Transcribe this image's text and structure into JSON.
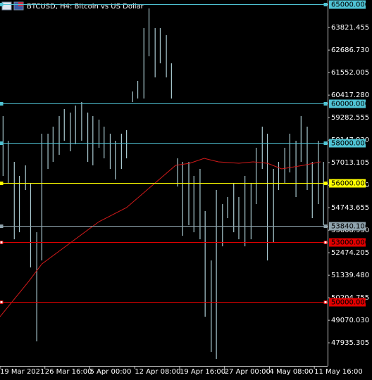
{
  "chart_data": {
    "type": "ohlc",
    "title": "BTCUSD, H4:  Bitcoin vs US Dollar",
    "color": "#a9c9d0",
    "x": [
      3,
      8,
      14,
      19,
      25,
      30,
      36,
      41,
      47,
      52,
      58,
      63,
      69,
      74,
      80,
      86,
      91,
      97,
      102,
      108,
      113,
      119,
      124,
      130,
      135,
      141,
      146,
      152,
      157,
      163,
      168,
      174,
      179,
      185,
      190,
      196,
      201,
      207,
      212,
      218,
      223,
      229,
      234,
      240,
      246,
      251,
      257,
      262,
      268,
      273,
      279,
      284,
      290,
      295,
      301,
      306,
      312,
      317
    ],
    "high": [
      59360,
      58118,
      57054,
      56344,
      56876,
      55990,
      53506,
      58473,
      58473,
      58828,
      59360,
      59714,
      59537,
      59892,
      60069,
      59537,
      59360,
      59182,
      58828,
      58473,
      58118,
      58473,
      58650,
      60601,
      61133,
      63794,
      64787,
      63794,
      63794,
      63439,
      62020,
      57231,
      57054,
      57054,
      56344,
      56699,
      54571,
      52087,
      55635,
      54925,
      55280,
      55990,
      55280,
      56344,
      55990,
      57763,
      58828,
      58473,
      56699,
      57054,
      57763,
      58473,
      58118,
      59360,
      58828,
      57054,
      58118,
      57054
    ],
    "low": [
      56344,
      55990,
      53152,
      53506,
      55635,
      51733,
      48008,
      52087,
      56699,
      57054,
      57409,
      58118,
      57586,
      57941,
      58118,
      57054,
      56876,
      57763,
      57231,
      56699,
      56167,
      56699,
      57231,
      60069,
      60246,
      60246,
      62375,
      61311,
      62020,
      61311,
      60246,
      55812,
      53329,
      53861,
      53506,
      53152,
      49250,
      47476,
      47121,
      52797,
      54216,
      53506,
      53152,
      52797,
      53152,
      54925,
      56699,
      52087,
      52974,
      55635,
      55990,
      56522,
      55280,
      57054,
      55635,
      54216,
      54925,
      53861
    ],
    "ma": {
      "color": "#d11a1a",
      "x": [
        0,
        28,
        41,
        69,
        97,
        124,
        152,
        172,
        186,
        200,
        214,
        234,
        248,
        262,
        276,
        297,
        314
      ],
      "values": [
        49250,
        51023,
        51910,
        52974,
        54039,
        54748,
        55990,
        56876,
        56983,
        57231,
        57054,
        56983,
        57054,
        56983,
        56699,
        56876,
        57054
      ]
    },
    "levels": [
      {
        "value": 65000,
        "label": "65000.000",
        "color": "#4fc3d4"
      },
      {
        "value": 60000,
        "label": "60000.000",
        "color": "#4fc3d4"
      },
      {
        "value": 58000,
        "label": "58000.000",
        "color": "#4fc3d4"
      },
      {
        "value": 56000,
        "label": "56000.000",
        "color": "#ffff00"
      },
      {
        "value": 53840.106,
        "label": "53840.106",
        "color": "#8fa3ad"
      },
      {
        "value": 53000,
        "label": "53000.000",
        "color": "#e00000"
      },
      {
        "value": 50000,
        "label": "50000.000",
        "color": "#e00000"
      }
    ],
    "xlim": [
      0,
      321
    ],
    "xticks": [
      {
        "value": 0,
        "label": "19 Mar 2021"
      },
      {
        "value": 44,
        "label": "26 Mar 16:00"
      },
      {
        "value": 88,
        "label": "5 Apr 00:00"
      },
      {
        "value": 132,
        "label": "12 Apr 08:00"
      },
      {
        "value": 176,
        "label": "19 Apr 16:00"
      },
      {
        "value": 220,
        "label": "27 Apr 00:00"
      },
      {
        "value": 264,
        "label": "4 May 08:00"
      },
      {
        "value": 308,
        "label": "11 May 16:00"
      }
    ],
    "ylim": [
      46770,
      65210
    ],
    "yticks": [
      63821.455,
      {
        "value": 62686.73,
        "label": "62686.730"
      },
      61552.005,
      {
        "value": 60417.28,
        "label": "60417.280"
      },
      59282.555,
      {
        "value": 58147.83,
        "label": "58147.830"
      },
      57013.105,
      {
        "value": 55878.38,
        "label": "55878.380"
      },
      54743.655,
      {
        "value": 53608.93,
        "label": "53608.930"
      },
      52474.205,
      {
        "value": 51339.48,
        "label": "51339.480"
      },
      50204.755,
      {
        "value": 49070.03,
        "label": "49070.030"
      },
      47935.305
    ]
  }
}
